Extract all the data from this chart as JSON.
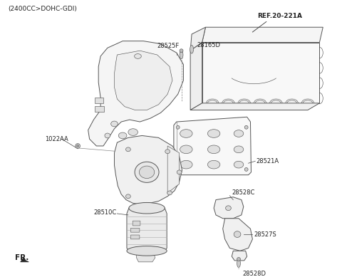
{
  "title_text": "(2400CC>DOHC-GDI)",
  "fr_label": "FR.",
  "ref_label": "REF.20-221A",
  "bg_color": "#ffffff",
  "line_color": "#555555",
  "text_color": "#222222",
  "title_fontsize": 6.5,
  "label_fontsize": 6.0,
  "fig_width": 4.8,
  "fig_height": 3.89,
  "dpi": 100
}
